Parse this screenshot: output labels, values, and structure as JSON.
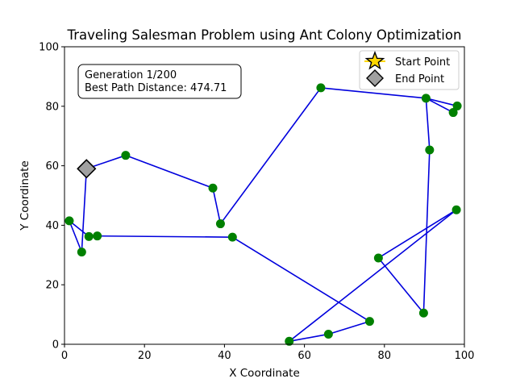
{
  "chart_data": {
    "type": "scatter",
    "title": "Traveling Salesman Problem using Ant Colony Optimization",
    "xlabel": "X Coordinate",
    "ylabel": "Y Coordinate",
    "xlim": [
      0,
      100
    ],
    "ylim": [
      0,
      100
    ],
    "xticks": [
      0,
      20,
      40,
      60,
      80,
      100
    ],
    "yticks": [
      0,
      20,
      40,
      60,
      80,
      100
    ],
    "grid": false,
    "legend_position": "top-right",
    "info_box": {
      "generation": "Generation 1/200",
      "distance": "Best Path Distance: 474.71"
    },
    "legend": [
      {
        "label": "Start Point",
        "marker": "star",
        "color": "#ffd700"
      },
      {
        "label": "End Point",
        "marker": "diamond",
        "color": "#a0a0a0"
      }
    ],
    "cities": [
      {
        "x": 5.5,
        "y": 59.0
      },
      {
        "x": 15.3,
        "y": 63.5
      },
      {
        "x": 37.1,
        "y": 52.5
      },
      {
        "x": 39.0,
        "y": 40.5
      },
      {
        "x": 64.1,
        "y": 86.2
      },
      {
        "x": 90.4,
        "y": 82.7
      },
      {
        "x": 98.2,
        "y": 80.1
      },
      {
        "x": 97.2,
        "y": 77.9
      },
      {
        "x": 91.3,
        "y": 65.3
      },
      {
        "x": 89.8,
        "y": 10.5
      },
      {
        "x": 78.5,
        "y": 29.0
      },
      {
        "x": 98.0,
        "y": 45.2
      },
      {
        "x": 56.2,
        "y": 1.0
      },
      {
        "x": 66.0,
        "y": 3.4
      },
      {
        "x": 76.3,
        "y": 7.7
      },
      {
        "x": 42.0,
        "y": 36.0
      },
      {
        "x": 8.2,
        "y": 36.4
      },
      {
        "x": 6.1,
        "y": 36.2
      },
      {
        "x": 1.2,
        "y": 41.5
      },
      {
        "x": 4.3,
        "y": 31.0
      }
    ],
    "path_order": [
      0,
      1,
      2,
      3,
      4,
      5,
      6,
      7,
      5,
      8,
      9,
      10,
      11,
      12,
      13,
      14,
      15,
      16,
      17,
      18,
      19,
      0
    ],
    "start_point": {
      "x": 5.5,
      "y": 59.0
    },
    "end_point": {
      "x": 5.5,
      "y": 59.0
    },
    "colors": {
      "path": "#0000dd",
      "city": "#008000",
      "start": "#ffd700",
      "end": "#a0a0a0"
    }
  }
}
